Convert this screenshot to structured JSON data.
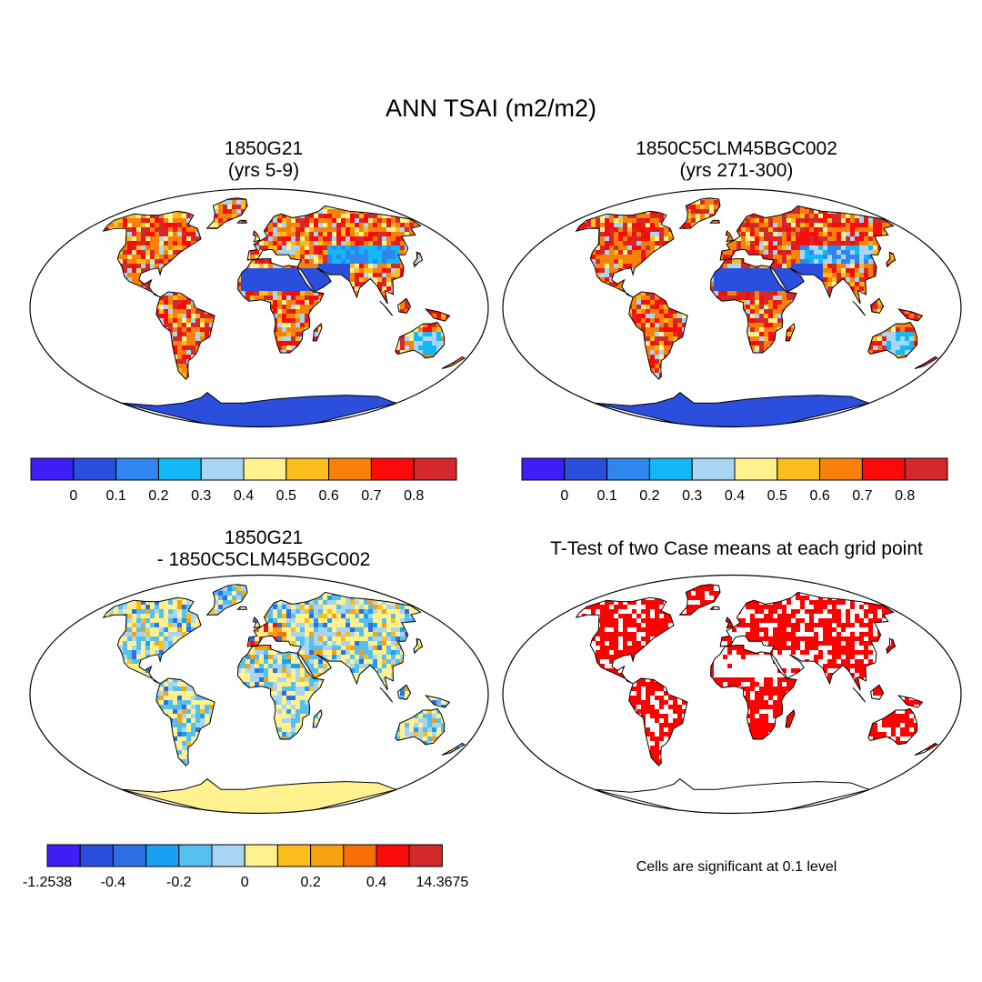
{
  "figure": {
    "title": "ANN TSAI (m2/m2)",
    "note": "Cells are significant at 0.1 level"
  },
  "panels": [
    {
      "title_line1": "1850G21",
      "title_line2": "(yrs 5-9)"
    },
    {
      "title_line1": "1850C5CLM45BGC002",
      "title_line2": "(yrs 271-300)"
    },
    {
      "title_line1": "1850G21",
      "title_line2": "- 1850C5CLM45BGC002"
    },
    {
      "title_line1": "T-Test of two Case means at each grid point",
      "title_line2": ""
    }
  ],
  "colorbars": {
    "absolute": {
      "colors": [
        "#3b1ff5",
        "#2b4fdc",
        "#2e86ee",
        "#14b8f5",
        "#a8d6f2",
        "#fff28e",
        "#fbbd1b",
        "#f88209",
        "#fb0a0a",
        "#d3292b"
      ],
      "labels": [
        "0",
        "0.1",
        "0.2",
        "0.3",
        "0.4",
        "0.5",
        "0.6",
        "0.7",
        "0.8"
      ]
    },
    "difference": {
      "colors": [
        "#3b1ff5",
        "#2b4fdc",
        "#2e6fe6",
        "#1aa0f2",
        "#55bff0",
        "#a8d6f2",
        "#fff28e",
        "#fbbd1b",
        "#f8a10f",
        "#f86e09",
        "#fb0a0a",
        "#d3292b"
      ],
      "labels": [
        "-1.2538",
        "-0.4",
        "-0.2",
        "0",
        "0.2",
        "0.4",
        "14.3675"
      ]
    }
  },
  "map_colors": {
    "tsai_high": "#d3292b",
    "tsai_mid": "#fbbd1b",
    "tsai_low": "#2b4fdc",
    "diff_neutral": "#fff28e",
    "diff_negative": "#8ec3ee",
    "significant": "#ff0000"
  }
}
